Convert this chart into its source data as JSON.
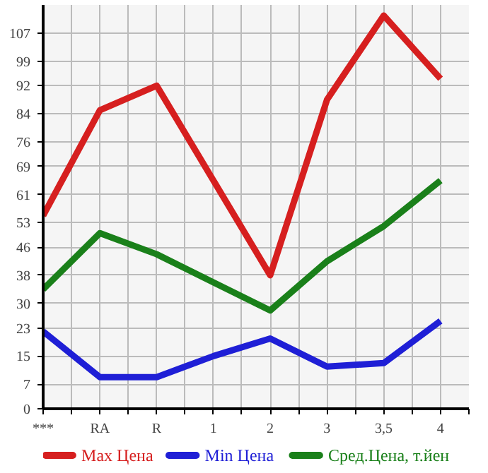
{
  "chart_data": {
    "type": "line",
    "categories": [
      "***",
      "RA",
      "R",
      "1",
      "2",
      "3",
      "3,5",
      "4"
    ],
    "series": [
      {
        "name": "Max Цена",
        "color": "#d61f1f",
        "values": [
          55,
          85,
          92,
          65,
          38,
          88,
          112,
          94
        ]
      },
      {
        "name": "Min Цена",
        "color": "#1f1fd6",
        "values": [
          22,
          9,
          9,
          15,
          20,
          12,
          13,
          25
        ]
      },
      {
        "name": "Сред.Цена, т.йен",
        "color": "#1a801a",
        "values": [
          34,
          50,
          44,
          36,
          28,
          42,
          52,
          65
        ]
      }
    ],
    "ylim": [
      0,
      115
    ],
    "yticks": [
      0,
      7,
      15,
      23,
      30,
      38,
      46,
      53,
      61,
      69,
      76,
      84,
      92,
      99,
      107
    ],
    "grid": true,
    "legend": "bottom",
    "marker": "none",
    "line_style": "solid"
  }
}
